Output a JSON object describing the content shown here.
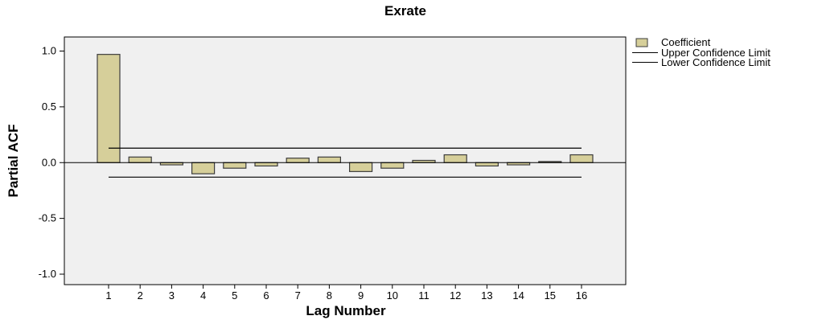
{
  "chart_data": {
    "type": "bar",
    "title": "Exrate",
    "xlabel": "Lag Number",
    "ylabel": "Partial ACF",
    "categories": [
      "1",
      "2",
      "3",
      "4",
      "5",
      "6",
      "7",
      "8",
      "9",
      "10",
      "11",
      "12",
      "13",
      "14",
      "15",
      "16"
    ],
    "series": [
      {
        "name": "Coefficient",
        "values": [
          0.97,
          0.05,
          -0.02,
          -0.1,
          -0.05,
          -0.03,
          0.04,
          0.05,
          -0.08,
          -0.05,
          0.02,
          0.07,
          -0.03,
          -0.02,
          0.01,
          0.07
        ]
      }
    ],
    "upper_confidence_limit": 0.13,
    "lower_confidence_limit": -0.13,
    "ylim": [
      -1.1,
      1.1
    ],
    "yticks": [
      1.0,
      0.5,
      0.0,
      -0.5,
      -1.0
    ],
    "ytick_labels": [
      "1.0",
      "0.5",
      "0.0",
      "-0.5",
      "-1.0"
    ],
    "legend": {
      "placement": "right",
      "entries": [
        "Coefficient",
        "Upper Confidence Limit",
        "Lower Confidence Limit"
      ]
    },
    "colors": {
      "bar_fill": "#d6cf9a",
      "bar_stroke": "#3c3c3c",
      "plot_background": "#f0f0f0",
      "limit_line": "#000000"
    },
    "grid": false
  }
}
